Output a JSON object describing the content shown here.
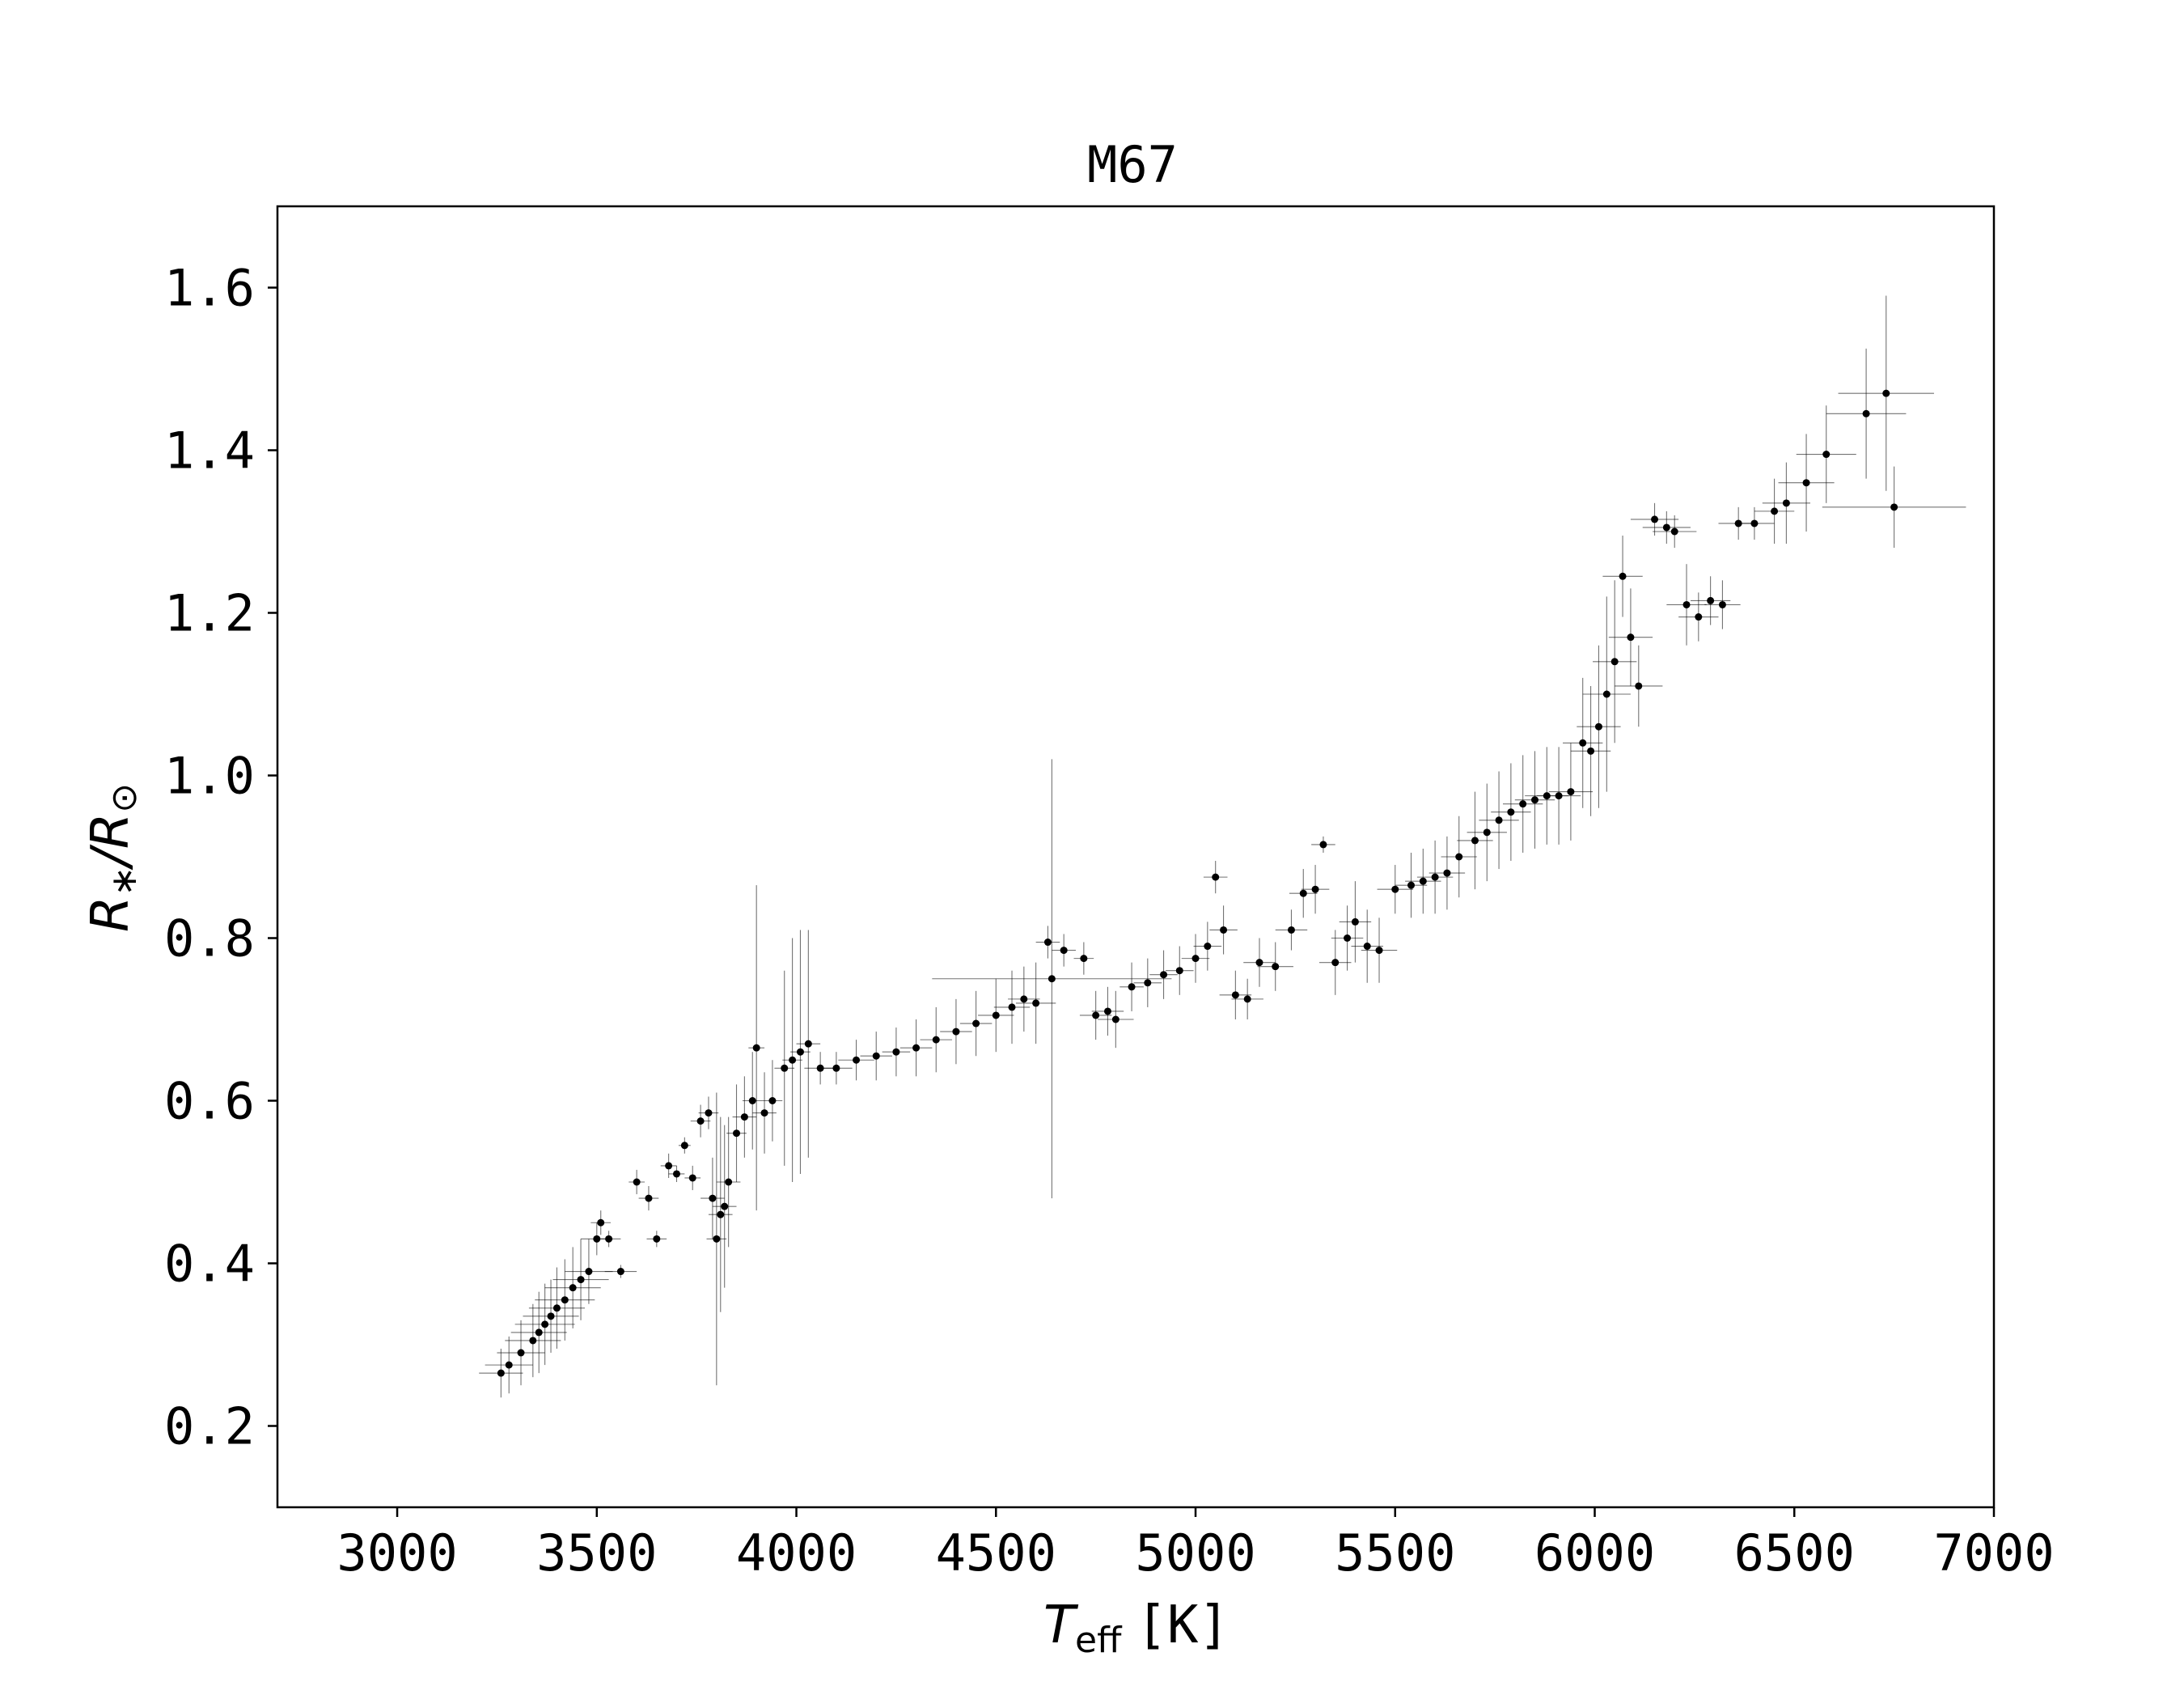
{
  "chart_data": {
    "type": "scatter",
    "title": "M67",
    "xlabel_main": "T",
    "xlabel_sub": "eff",
    "xlabel_unit": "[K]",
    "ylabel_main": "R",
    "ylabel_star": "∗",
    "ylabel_slash": "/R",
    "ylabel_sun": "⊙",
    "xlim": [
      2700,
      7000
    ],
    "ylim": [
      0.1,
      1.7
    ],
    "xticks": [
      3000,
      3500,
      4000,
      4500,
      5000,
      5500,
      6000,
      6500,
      7000
    ],
    "yticks": [
      0.2,
      0.4,
      0.6,
      0.8,
      1.0,
      1.2,
      1.4,
      1.6
    ],
    "xtick_labels": [
      "3000",
      "3500",
      "4000",
      "4500",
      "5000",
      "5500",
      "6000",
      "6500",
      "7000"
    ],
    "ytick_labels": [
      "0.2",
      "0.4",
      "0.6",
      "0.8",
      "1.0",
      "1.2",
      "1.4",
      "1.6"
    ],
    "grid": false,
    "marker_color": "#000000",
    "points": [
      [
        3260,
        0.265,
        55,
        0.03
      ],
      [
        3280,
        0.275,
        60,
        0.035
      ],
      [
        3310,
        0.29,
        60,
        0.04
      ],
      [
        3340,
        0.305,
        70,
        0.045
      ],
      [
        3355,
        0.315,
        70,
        0.05
      ],
      [
        3370,
        0.325,
        75,
        0.05
      ],
      [
        3385,
        0.335,
        70,
        0.045
      ],
      [
        3400,
        0.345,
        70,
        0.05
      ],
      [
        3420,
        0.355,
        75,
        0.05
      ],
      [
        3440,
        0.37,
        70,
        0.05
      ],
      [
        3460,
        0.38,
        70,
        0.05
      ],
      [
        3480,
        0.39,
        60,
        0.04
      ],
      [
        3500,
        0.43,
        40,
        0.02
      ],
      [
        3510,
        0.45,
        25,
        0.015
      ],
      [
        3530,
        0.43,
        30,
        0.01
      ],
      [
        3560,
        0.39,
        40,
        0.008
      ],
      [
        3600,
        0.5,
        20,
        0.015
      ],
      [
        3630,
        0.48,
        25,
        0.015
      ],
      [
        3650,
        0.43,
        25,
        0.01
      ],
      [
        3680,
        0.52,
        20,
        0.015
      ],
      [
        3700,
        0.51,
        20,
        0.01
      ],
      [
        3720,
        0.545,
        15,
        0.01
      ],
      [
        3740,
        0.505,
        20,
        0.015
      ],
      [
        3760,
        0.575,
        25,
        0.02
      ],
      [
        3780,
        0.585,
        25,
        0.02
      ],
      [
        3790,
        0.48,
        30,
        0.05
      ],
      [
        3800,
        0.43,
        25,
        0.18
      ],
      [
        3810,
        0.46,
        30,
        0.12
      ],
      [
        3820,
        0.47,
        30,
        0.1
      ],
      [
        3830,
        0.5,
        30,
        0.08
      ],
      [
        3850,
        0.56,
        25,
        0.06
      ],
      [
        3870,
        0.58,
        30,
        0.05
      ],
      [
        3890,
        0.6,
        25,
        0.06
      ],
      [
        3900,
        0.665,
        20,
        0.2
      ],
      [
        3920,
        0.585,
        30,
        0.05
      ],
      [
        3940,
        0.6,
        25,
        0.05
      ],
      [
        3970,
        0.64,
        25,
        0.12
      ],
      [
        3990,
        0.65,
        25,
        0.15
      ],
      [
        4010,
        0.66,
        25,
        0.15
      ],
      [
        4030,
        0.67,
        30,
        0.14
      ],
      [
        4060,
        0.64,
        40,
        0.02
      ],
      [
        4100,
        0.64,
        40,
        0.02
      ],
      [
        4150,
        0.65,
        45,
        0.025
      ],
      [
        4200,
        0.655,
        40,
        0.03
      ],
      [
        4250,
        0.66,
        35,
        0.03
      ],
      [
        4300,
        0.665,
        40,
        0.035
      ],
      [
        4350,
        0.675,
        40,
        0.04
      ],
      [
        4400,
        0.685,
        40,
        0.04
      ],
      [
        4450,
        0.695,
        40,
        0.04
      ],
      [
        4500,
        0.705,
        45,
        0.045
      ],
      [
        4540,
        0.715,
        45,
        0.045
      ],
      [
        4570,
        0.725,
        40,
        0.04
      ],
      [
        4600,
        0.72,
        50,
        0.05
      ],
      [
        4630,
        0.795,
        30,
        0.02
      ],
      [
        4640,
        0.75,
        300,
        0.27
      ],
      [
        4670,
        0.785,
        30,
        0.02
      ],
      [
        4720,
        0.775,
        25,
        0.02
      ],
      [
        4750,
        0.705,
        40,
        0.03
      ],
      [
        4780,
        0.71,
        40,
        0.03
      ],
      [
        4800,
        0.7,
        45,
        0.035
      ],
      [
        4840,
        0.74,
        30,
        0.03
      ],
      [
        4880,
        0.745,
        35,
        0.03
      ],
      [
        4920,
        0.755,
        35,
        0.03
      ],
      [
        4960,
        0.76,
        35,
        0.03
      ],
      [
        5000,
        0.775,
        35,
        0.03
      ],
      [
        5030,
        0.79,
        35,
        0.03
      ],
      [
        5050,
        0.875,
        30,
        0.02
      ],
      [
        5070,
        0.81,
        35,
        0.03
      ],
      [
        5100,
        0.73,
        40,
        0.03
      ],
      [
        5130,
        0.725,
        40,
        0.025
      ],
      [
        5160,
        0.77,
        40,
        0.03
      ],
      [
        5200,
        0.765,
        45,
        0.03
      ],
      [
        5240,
        0.81,
        40,
        0.025
      ],
      [
        5270,
        0.855,
        35,
        0.03
      ],
      [
        5300,
        0.86,
        35,
        0.03
      ],
      [
        5320,
        0.915,
        30,
        0.01
      ],
      [
        5350,
        0.77,
        40,
        0.04
      ],
      [
        5380,
        0.8,
        40,
        0.04
      ],
      [
        5400,
        0.82,
        40,
        0.05
      ],
      [
        5430,
        0.79,
        40,
        0.045
      ],
      [
        5460,
        0.785,
        45,
        0.04
      ],
      [
        5500,
        0.86,
        45,
        0.03
      ],
      [
        5540,
        0.865,
        40,
        0.04
      ],
      [
        5570,
        0.87,
        45,
        0.04
      ],
      [
        5600,
        0.875,
        45,
        0.045
      ],
      [
        5630,
        0.88,
        45,
        0.045
      ],
      [
        5660,
        0.9,
        45,
        0.05
      ],
      [
        5700,
        0.92,
        45,
        0.06
      ],
      [
        5730,
        0.93,
        50,
        0.06
      ],
      [
        5760,
        0.945,
        50,
        0.06
      ],
      [
        5790,
        0.955,
        50,
        0.06
      ],
      [
        5820,
        0.965,
        50,
        0.06
      ],
      [
        5850,
        0.97,
        50,
        0.06
      ],
      [
        5880,
        0.975,
        55,
        0.06
      ],
      [
        5910,
        0.975,
        55,
        0.06
      ],
      [
        5940,
        0.98,
        55,
        0.06
      ],
      [
        5970,
        1.04,
        50,
        0.08
      ],
      [
        5990,
        1.03,
        50,
        0.08
      ],
      [
        6010,
        1.06,
        55,
        0.1
      ],
      [
        6030,
        1.1,
        60,
        0.12
      ],
      [
        6050,
        1.14,
        55,
        0.1
      ],
      [
        6070,
        1.245,
        50,
        0.05
      ],
      [
        6090,
        1.17,
        55,
        0.06
      ],
      [
        6110,
        1.11,
        60,
        0.05
      ],
      [
        6150,
        1.315,
        60,
        0.02
      ],
      [
        6180,
        1.305,
        60,
        0.02
      ],
      [
        6200,
        1.3,
        55,
        0.02
      ],
      [
        6230,
        1.21,
        50,
        0.05
      ],
      [
        6260,
        1.195,
        50,
        0.03
      ],
      [
        6290,
        1.215,
        50,
        0.03
      ],
      [
        6320,
        1.21,
        45,
        0.03
      ],
      [
        6360,
        1.31,
        50,
        0.02
      ],
      [
        6400,
        1.31,
        50,
        0.02
      ],
      [
        6450,
        1.325,
        50,
        0.04
      ],
      [
        6480,
        1.335,
        60,
        0.05
      ],
      [
        6530,
        1.36,
        70,
        0.06
      ],
      [
        6580,
        1.395,
        75,
        0.06
      ],
      [
        6680,
        1.445,
        100,
        0.08
      ],
      [
        6730,
        1.47,
        120,
        0.12
      ],
      [
        6750,
        1.33,
        180,
        0.05
      ]
    ]
  }
}
